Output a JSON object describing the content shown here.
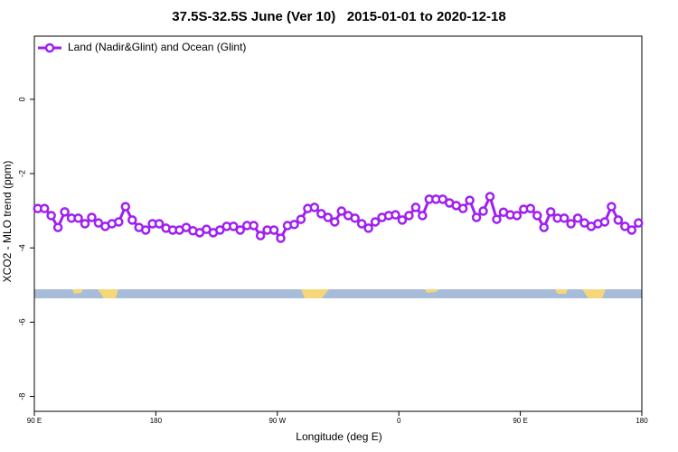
{
  "chart_data": {
    "type": "line",
    "title": "37.5S-32.5S June (Ver 10)   2015-01-01 to 2020-12-18",
    "x_label": "Longitude (deg E)",
    "y_label": "XCO2 - MLO trend (ppm)",
    "legend_position": "top-left",
    "x": [
      92.5,
      97.5,
      102.5,
      107.5,
      112.5,
      117.5,
      122.5,
      127.5,
      132.5,
      137.5,
      142.5,
      147.5,
      152.5,
      157.5,
      162.5,
      167.5,
      172.5,
      177.5,
      182.5,
      187.5,
      192.5,
      197.5,
      202.5,
      207.5,
      212.5,
      217.5,
      222.5,
      227.5,
      232.5,
      237.5,
      242.5,
      247.5,
      252.5,
      257.5,
      262.5,
      267.5,
      272.5,
      277.5,
      282.5,
      287.5,
      292.5,
      297.5,
      302.5,
      307.5,
      312.5,
      317.5,
      322.5,
      327.5,
      332.5,
      337.5,
      342.5,
      347.5,
      352.5,
      357.5,
      362.5,
      367.5,
      372.5,
      377.5,
      382.5,
      387.5,
      392.5,
      397.5,
      402.5,
      407.5,
      412.5,
      417.5,
      422.5,
      427.5,
      432.5,
      437.5,
      442.5,
      447.5,
      452.5,
      457.5,
      462.5,
      467.5,
      472.5,
      477.5,
      482.5,
      487.5,
      492.5,
      497.5,
      502.5,
      507.5,
      512.5,
      517.5,
      522.5,
      527.5,
      532.5,
      537.5
    ],
    "series": [
      {
        "name": "Land (Nadir&Glint) and Ocean (Glint)",
        "color": "#a020f0",
        "values": [
          -2.94,
          -2.94,
          -3.13,
          -3.45,
          -3.03,
          -3.2,
          -3.2,
          -3.35,
          -3.18,
          -3.33,
          -3.42,
          -3.35,
          -3.3,
          -2.89,
          -3.25,
          -3.45,
          -3.52,
          -3.35,
          -3.35,
          -3.47,
          -3.52,
          -3.52,
          -3.45,
          -3.54,
          -3.59,
          -3.5,
          -3.59,
          -3.52,
          -3.42,
          -3.42,
          -3.52,
          -3.4,
          -3.4,
          -3.67,
          -3.52,
          -3.52,
          -3.74,
          -3.4,
          -3.37,
          -3.23,
          -2.94,
          -2.91,
          -3.08,
          -3.18,
          -3.3,
          -3.01,
          -3.13,
          -3.2,
          -3.35,
          -3.47,
          -3.3,
          -3.18,
          -3.13,
          -3.11,
          -3.25,
          -3.13,
          -2.91,
          -3.13,
          -2.69,
          -2.69,
          -2.69,
          -2.79,
          -2.86,
          -2.94,
          -2.72,
          -3.18,
          -3.01,
          -2.62,
          -3.23,
          -3.04,
          -3.11,
          -3.13,
          -2.96,
          -2.94,
          -3.13,
          -3.45,
          -3.03,
          -3.2,
          -3.2,
          -3.35,
          -3.2,
          -3.33,
          -3.42,
          -3.35,
          -3.3,
          -2.89,
          -3.25,
          -3.42,
          -3.52,
          -3.33
        ]
      }
    ],
    "xlim": [
      90,
      540
    ],
    "xticks": [
      {
        "value": 90,
        "label": "90 E"
      },
      180,
      {
        "value": 270,
        "label": "90 W"
      },
      {
        "value": 360,
        "label": "0"
      },
      {
        "value": 450,
        "label": "90 E"
      },
      {
        "value": 540,
        "label": "180"
      }
    ],
    "ylim": [
      -8.4,
      1.7
    ],
    "yticks": [
      -8,
      -6,
      -4,
      -2,
      0
    ]
  }
}
